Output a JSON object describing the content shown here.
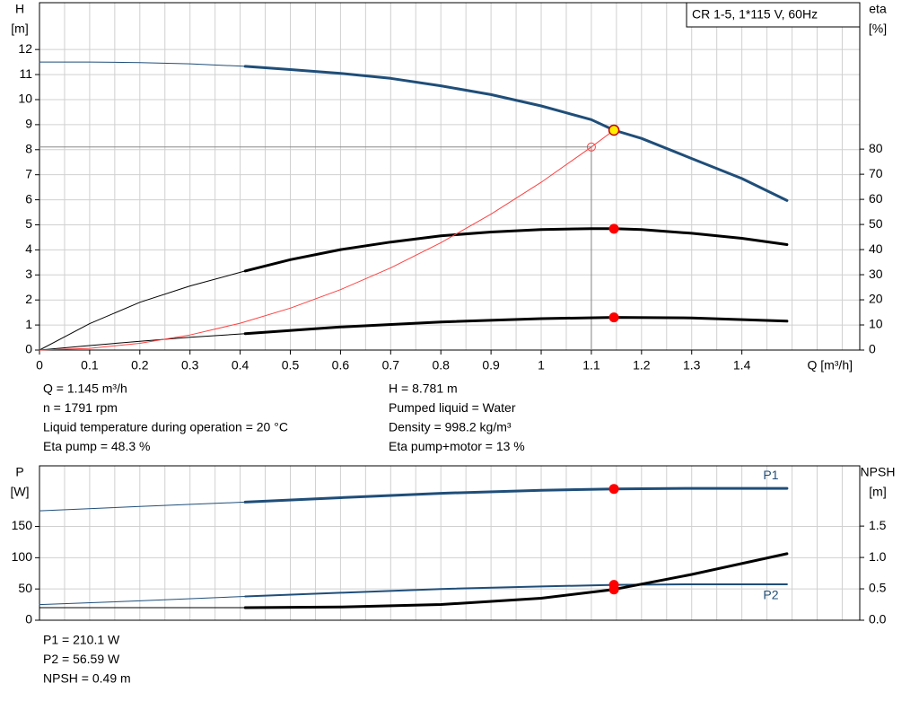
{
  "chart_data": [
    {
      "type": "line",
      "box_label": "CR 1-5, 1*115 V, 60Hz",
      "y_label": "H",
      "y_unit": "[m]",
      "y2_label": "eta",
      "y2_unit": "[%]",
      "x_label": "Q [m³/h]",
      "xlim": [
        0,
        1.635
      ],
      "ylim": [
        0,
        13.87
      ],
      "y2lim": [
        0,
        138.3
      ],
      "xticks": [
        0,
        0.1,
        0.2,
        0.3,
        0.4,
        0.5,
        0.6,
        0.7,
        0.8,
        0.9,
        1.0,
        1.1,
        1.2,
        1.3,
        1.4
      ],
      "xgrid": [
        0.05,
        0.1,
        0.15,
        0.2,
        0.25,
        0.3,
        0.35,
        0.4,
        0.45,
        0.5,
        0.55,
        0.6,
        0.65,
        0.7,
        0.75,
        0.8,
        0.85,
        0.9,
        0.95,
        1.0,
        1.05,
        1.1,
        1.15,
        1.2,
        1.25,
        1.3,
        1.35,
        1.4,
        1.45,
        1.5,
        1.55,
        1.6
      ],
      "yticks": [
        0,
        1,
        2,
        3,
        4,
        5,
        6,
        7,
        8,
        9,
        10,
        11,
        12
      ],
      "y2ticks": [
        0,
        10,
        20,
        30,
        40,
        50,
        60,
        70,
        80
      ],
      "grid": true,
      "series": [
        {
          "color": "#1f4e79",
          "width": 1,
          "x": [
            0,
            0.1,
            0.2,
            0.3,
            0.41
          ],
          "values": [
            11.5,
            11.5,
            11.48,
            11.43,
            11.33
          ]
        },
        {
          "color": "#1f4e79",
          "width": 3,
          "x": [
            0.41,
            0.5,
            0.6,
            0.7,
            0.8,
            0.9,
            1.0,
            1.1,
            1.145,
            1.2,
            1.3,
            1.4,
            1.49
          ],
          "values": [
            11.33,
            11.2,
            11.05,
            10.85,
            10.55,
            10.2,
            9.75,
            9.2,
            8.781,
            8.45,
            7.65,
            6.85,
            5.97
          ]
        },
        {
          "color": "#000000",
          "width": 1,
          "axis": "y2",
          "x": [
            0,
            0.1,
            0.2,
            0.3,
            0.41
          ],
          "values": [
            0,
            10.5,
            19,
            25.5,
            31.5
          ]
        },
        {
          "color": "#000000",
          "width": 3,
          "axis": "y2",
          "x": [
            0.41,
            0.5,
            0.6,
            0.7,
            0.8,
            0.9,
            1.0,
            1.1,
            1.145,
            1.2,
            1.3,
            1.4,
            1.49
          ],
          "values": [
            31.5,
            36,
            40,
            43,
            45.5,
            47,
            48,
            48.3,
            48.3,
            48,
            46.5,
            44.5,
            42
          ]
        },
        {
          "color": "#000000",
          "width": 1,
          "axis": "y2",
          "x": [
            0,
            0.1,
            0.2,
            0.3,
            0.41
          ],
          "values": [
            0,
            1.8,
            3.5,
            5.1,
            6.5
          ]
        },
        {
          "color": "#000000",
          "width": 3,
          "axis": "y2",
          "x": [
            0.41,
            0.6,
            0.8,
            1.0,
            1.145,
            1.3,
            1.49
          ],
          "values": [
            6.5,
            9.2,
            11.2,
            12.5,
            13,
            12.8,
            11.5
          ]
        },
        {
          "color": "#ff4040",
          "width": 1,
          "x": [
            0,
            0.1,
            0.2,
            0.3,
            0.4,
            0.5,
            0.6,
            0.7,
            0.8,
            0.9,
            1.0,
            1.1,
            1.145
          ],
          "values": [
            0,
            0.067,
            0.268,
            0.603,
            1.072,
            1.675,
            2.412,
            3.283,
            4.288,
            5.427,
            6.7,
            8.107,
            8.781
          ]
        }
      ],
      "points": [
        {
          "x": 1.145,
          "y": 8.781,
          "color": "#ffee00"
        },
        {
          "x": 1.145,
          "y": 48.3,
          "axis": "y2",
          "color": "#ff0000"
        },
        {
          "x": 1.145,
          "y": 13,
          "axis": "y2",
          "color": "#ff0000"
        }
      ],
      "reference": {
        "x": 1.1,
        "y": 8.107
      },
      "info": [
        [
          "Q = 1.145 m³/h",
          "n = 1791 rpm",
          "Liquid temperature during operation = 20 °C",
          "Eta pump = 48.3 %"
        ],
        [
          "H = 8.781 m",
          "Pumped liquid = Water",
          "Density = 998.2 kg/m³",
          "Eta pump+motor = 13 %"
        ]
      ]
    },
    {
      "type": "line",
      "y_label": "P",
      "y_unit": "[W]",
      "y2_label": "NPSH",
      "y2_unit": "[m]",
      "xlim": [
        0,
        1.635
      ],
      "ylim": [
        0,
        247
      ],
      "y2lim": [
        0,
        2.46
      ],
      "xgrid": [
        0.05,
        0.1,
        0.15,
        0.2,
        0.25,
        0.3,
        0.35,
        0.4,
        0.45,
        0.5,
        0.55,
        0.6,
        0.65,
        0.7,
        0.75,
        0.8,
        0.85,
        0.9,
        0.95,
        1.0,
        1.05,
        1.1,
        1.15,
        1.2,
        1.25,
        1.3,
        1.35,
        1.4,
        1.45,
        1.5,
        1.55,
        1.6
      ],
      "yticks": [
        0,
        50,
        100,
        150
      ],
      "y2ticks": [
        {
          "value": 0,
          "label": "0.0"
        },
        {
          "value": 0.5,
          "label": "0.5"
        },
        {
          "value": 1,
          "label": "1.0"
        },
        {
          "value": 1.5,
          "label": "1.5"
        }
      ],
      "grid": true,
      "series": [
        {
          "color": "#1f4e79",
          "width": 1,
          "x": [
            0,
            0.2,
            0.41
          ],
          "values": [
            175,
            182,
            189
          ]
        },
        {
          "name": "P1",
          "label_side": "above",
          "color": "#1f4e79",
          "width": 3,
          "x": [
            0.41,
            0.6,
            0.8,
            1.0,
            1.145,
            1.3,
            1.49
          ],
          "values": [
            189,
            196,
            203,
            208,
            210.1,
            211,
            211
          ]
        },
        {
          "color": "#1f4e79",
          "width": 1,
          "x": [
            0,
            0.2,
            0.41
          ],
          "values": [
            25,
            31,
            38
          ]
        },
        {
          "name": "P2",
          "label_side": "below",
          "color": "#1f4e79",
          "width": 2,
          "x": [
            0.41,
            0.6,
            0.8,
            1.0,
            1.145,
            1.3,
            1.49
          ],
          "values": [
            38,
            44,
            50,
            54,
            56.59,
            57.5,
            57.5
          ]
        },
        {
          "color": "#000000",
          "width": 1,
          "axis": "y2",
          "x": [
            0,
            0.41
          ],
          "values": [
            0.2,
            0.2
          ]
        },
        {
          "color": "#000000",
          "width": 3,
          "axis": "y2",
          "x": [
            0.41,
            0.6,
            0.8,
            1.0,
            1.145,
            1.3,
            1.49
          ],
          "values": [
            0.2,
            0.21,
            0.25,
            0.35,
            0.49,
            0.73,
            1.06
          ]
        }
      ],
      "points": [
        {
          "x": 1.145,
          "y": 210.1,
          "color": "#ff0000"
        },
        {
          "x": 1.145,
          "y": 56.59,
          "color": "#ff0000"
        },
        {
          "x": 1.145,
          "y": 0.49,
          "axis": "y2",
          "color": "#ff0000"
        }
      ],
      "info": [
        [
          "P1 = 210.1 W",
          "P2 = 56.59 W",
          "NPSH = 0.49 m"
        ]
      ]
    }
  ]
}
